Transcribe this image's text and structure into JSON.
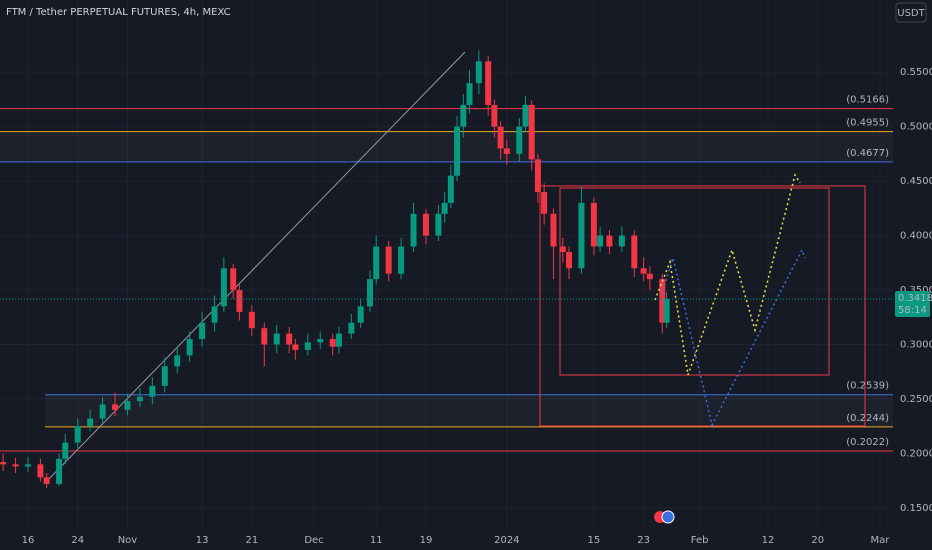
{
  "chart_data": {
    "type": "candlestick",
    "title": "FTM / Tether PERPETUAL FUTURES, 4h, MEXC",
    "currency_button": "USDT",
    "x": [
      -4,
      -2,
      0,
      2,
      3,
      5,
      6,
      8,
      10,
      12,
      14,
      16,
      18,
      20,
      22,
      24,
      26,
      28,
      30,
      31.5,
      33,
      34,
      36,
      38,
      40,
      42,
      43,
      45,
      47,
      49,
      50,
      52,
      53.5,
      55,
      56,
      58,
      60,
      62,
      64,
      66,
      67,
      68,
      69,
      70,
      71,
      72.5,
      74,
      75,
      76,
      77,
      79,
      80,
      81,
      82,
      83,
      84.5,
      86,
      87,
      89,
      91,
      92,
      93.5,
      95.5,
      97.5,
      99,
      100,
      102,
      102.7
    ],
    "open": [
      0.192,
      0.19,
      0.188,
      0.19,
      0.178,
      0.172,
      0.195,
      0.21,
      0.225,
      0.232,
      0.245,
      0.24,
      0.248,
      0.252,
      0.262,
      0.28,
      0.29,
      0.305,
      0.32,
      0.335,
      0.37,
      0.35,
      0.33,
      0.315,
      0.3,
      0.31,
      0.3,
      0.295,
      0.302,
      0.305,
      0.298,
      0.31,
      0.32,
      0.335,
      0.36,
      0.39,
      0.365,
      0.39,
      0.42,
      0.4,
      0.42,
      0.43,
      0.455,
      0.5,
      0.52,
      0.54,
      0.56,
      0.52,
      0.5,
      0.48,
      0.475,
      0.5,
      0.52,
      0.47,
      0.44,
      0.42,
      0.39,
      0.385,
      0.37,
      0.43,
      0.39,
      0.4,
      0.39,
      0.4,
      0.37,
      0.365,
      0.36,
      0.32
    ],
    "high": [
      0.2,
      0.196,
      0.197,
      0.195,
      0.182,
      0.2,
      0.218,
      0.232,
      0.24,
      0.252,
      0.256,
      0.255,
      0.26,
      0.27,
      0.288,
      0.298,
      0.312,
      0.33,
      0.345,
      0.38,
      0.374,
      0.355,
      0.336,
      0.32,
      0.318,
      0.316,
      0.305,
      0.31,
      0.312,
      0.31,
      0.316,
      0.328,
      0.342,
      0.368,
      0.4,
      0.395,
      0.398,
      0.43,
      0.424,
      0.428,
      0.44,
      0.465,
      0.51,
      0.53,
      0.552,
      0.57,
      0.565,
      0.525,
      0.505,
      0.488,
      0.508,
      0.528,
      0.524,
      0.475,
      0.448,
      0.425,
      0.398,
      0.39,
      0.445,
      0.435,
      0.408,
      0.405,
      0.408,
      0.405,
      0.38,
      0.372,
      0.365,
      0.348
    ],
    "low": [
      0.184,
      0.182,
      0.183,
      0.174,
      0.168,
      0.17,
      0.19,
      0.205,
      0.22,
      0.228,
      0.234,
      0.235,
      0.243,
      0.245,
      0.256,
      0.274,
      0.284,
      0.298,
      0.312,
      0.33,
      0.342,
      0.322,
      0.308,
      0.28,
      0.292,
      0.292,
      0.286,
      0.29,
      0.296,
      0.29,
      0.292,
      0.305,
      0.315,
      0.33,
      0.355,
      0.358,
      0.36,
      0.385,
      0.392,
      0.395,
      0.412,
      0.425,
      0.45,
      0.49,
      0.512,
      0.53,
      0.51,
      0.49,
      0.47,
      0.465,
      0.468,
      0.495,
      0.46,
      0.43,
      0.41,
      0.36,
      0.375,
      0.36,
      0.365,
      0.382,
      0.385,
      0.383,
      0.385,
      0.362,
      0.358,
      0.35,
      0.31,
      0.315
    ],
    "close": [
      0.19,
      0.188,
      0.19,
      0.178,
      0.172,
      0.195,
      0.21,
      0.225,
      0.232,
      0.245,
      0.24,
      0.248,
      0.252,
      0.262,
      0.28,
      0.29,
      0.305,
      0.32,
      0.335,
      0.37,
      0.35,
      0.33,
      0.315,
      0.3,
      0.31,
      0.3,
      0.295,
      0.302,
      0.305,
      0.298,
      0.31,
      0.32,
      0.335,
      0.36,
      0.39,
      0.365,
      0.39,
      0.42,
      0.4,
      0.42,
      0.43,
      0.455,
      0.5,
      0.52,
      0.54,
      0.56,
      0.52,
      0.5,
      0.48,
      0.475,
      0.5,
      0.52,
      0.47,
      0.44,
      0.42,
      0.39,
      0.385,
      0.37,
      0.43,
      0.39,
      0.4,
      0.39,
      0.4,
      0.37,
      0.365,
      0.36,
      0.32,
      0.3418
    ],
    "up_color": "#089981",
    "down_color": "#f23645",
    "countdown": "58:14",
    "levels": [
      {
        "value": 0.5166,
        "label": "(0.5166)",
        "color": "#f23645"
      },
      {
        "value": 0.4955,
        "label": "(0.4955)",
        "color": "#f5a623"
      },
      {
        "value": 0.4677,
        "label": "(0.4677)",
        "color": "#3b6fe0"
      },
      {
        "value": 0.2539,
        "label": "(0.2539)",
        "color": "#3b6fe0"
      },
      {
        "value": 0.2244,
        "label": "(0.2244)",
        "color": "#f5a623"
      },
      {
        "value": 0.2022,
        "label": "(0.2022)",
        "color": "#f23645"
      }
    ],
    "xlim": [
      -4.5,
      139.1
    ],
    "xticks": [
      {
        "value": 0,
        "label": "16"
      },
      {
        "value": 8,
        "label": "24"
      },
      {
        "value": 16,
        "label": "Nov"
      },
      {
        "value": 28,
        "label": "13"
      },
      {
        "value": 36,
        "label": "21"
      },
      {
        "value": 46,
        "label": "Dec"
      },
      {
        "value": 56,
        "label": "11"
      },
      {
        "value": 64,
        "label": "19"
      },
      {
        "value": 77,
        "label": "2024"
      },
      {
        "value": 91,
        "label": "15"
      },
      {
        "value": 99,
        "label": "23"
      },
      {
        "value": 108,
        "label": "Feb"
      },
      {
        "value": 119,
        "label": "12"
      },
      {
        "value": 127,
        "label": "20"
      },
      {
        "value": 137,
        "label": "Mar"
      }
    ],
    "ylim": [
      0.1297,
      0.6163
    ],
    "yticks": [
      {
        "value": 0.15,
        "label": "0.1500"
      },
      {
        "value": 0.2,
        "label": "0.2000"
      },
      {
        "value": 0.25,
        "label": "0.2500"
      },
      {
        "value": 0.3,
        "label": "0.3000"
      },
      {
        "value": 0.35,
        "label": "0.3500"
      },
      {
        "value": 0.4,
        "label": "0.4000"
      },
      {
        "value": 0.45,
        "label": "0.4500"
      },
      {
        "value": 0.5,
        "label": "0.5000"
      },
      {
        "value": 0.55,
        "label": "0.5500"
      }
    ],
    "grid": true
  }
}
